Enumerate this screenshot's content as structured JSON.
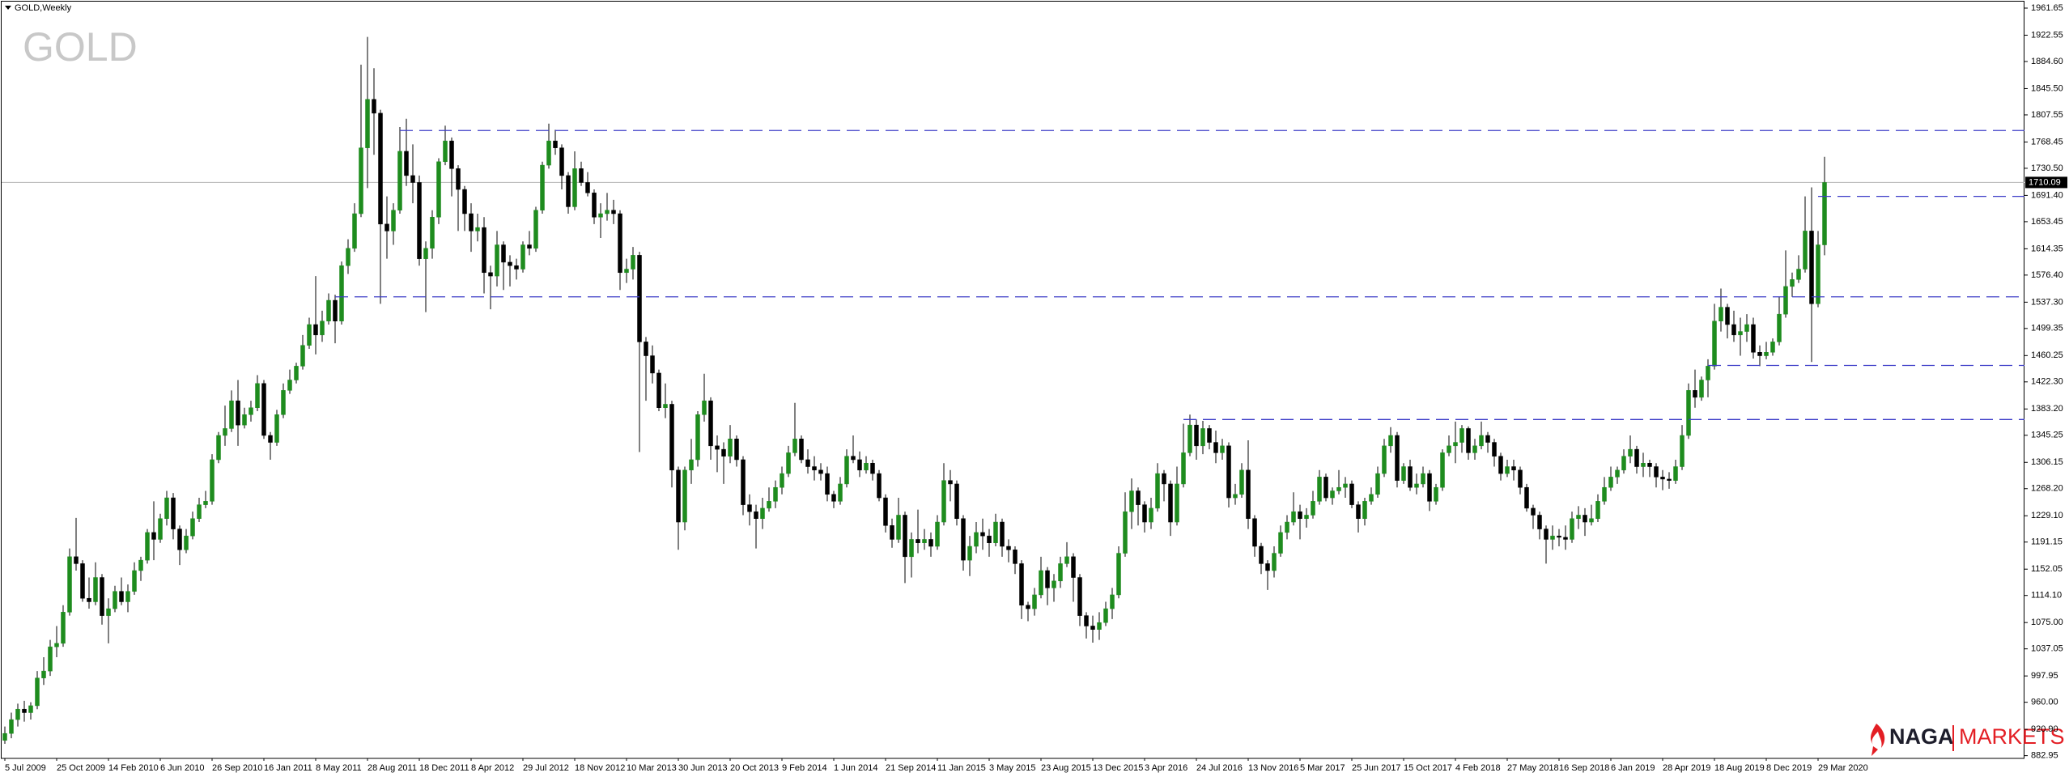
{
  "chart_data": {
    "type": "candlestick",
    "title": "GOLD,Weekly",
    "watermark": "GOLD",
    "up_color": "#1e8c1e",
    "down_color": "#000000",
    "wick_color": "#000000",
    "level_color": "#3c3cc8",
    "current_color": "#b4b4b4",
    "ylim": [
      879,
      1971
    ],
    "yticks": [
      1961.65,
      1922.55,
      {
        "value": 1884.6,
        "label": "1884.60"
      },
      {
        "value": 1845.5,
        "label": "1845.50"
      },
      1807.55,
      1768.45,
      {
        "value": 1730.5,
        "label": "1730.50"
      },
      {
        "value": 1691.4,
        "label": "1691.40"
      },
      1653.45,
      1614.35,
      {
        "value": 1576.4,
        "label": "1576.40"
      },
      {
        "value": 1537.3,
        "label": "1537.30"
      },
      1499.35,
      1460.25,
      {
        "value": 1422.3,
        "label": "1422.30"
      },
      {
        "value": 1383.2,
        "label": "1383.20"
      },
      1345.25,
      1306.15,
      {
        "value": 1268.2,
        "label": "1268.20"
      },
      {
        "value": 1229.1,
        "label": "1229.10"
      },
      1191.15,
      1152.05,
      {
        "value": 1114.1,
        "label": "1114.10"
      },
      {
        "value": 1075,
        "label": "1075.00"
      },
      1037.05,
      997.95,
      {
        "value": 960,
        "label": "960.00"
      },
      {
        "value": 920.9,
        "label": "920.90"
      },
      882.95
    ],
    "current_price": 1710.09,
    "levels": [
      {
        "price": 1785,
        "start": 61
      },
      {
        "price": 1690,
        "start": 280
      },
      {
        "price": 1545,
        "start": 51
      },
      {
        "price": 1446,
        "start": 263
      },
      {
        "price": 1368,
        "start": 182
      }
    ],
    "categories": [
      "5 Jul 2009",
      null,
      null,
      null,
      null,
      null,
      null,
      null,
      "25 Oct 2009",
      null,
      null,
      null,
      null,
      null,
      null,
      null,
      "14 Feb 2010",
      null,
      null,
      null,
      null,
      null,
      null,
      null,
      "6 Jun 2010",
      null,
      null,
      null,
      null,
      null,
      null,
      null,
      "26 Sep 2010",
      null,
      null,
      null,
      null,
      null,
      null,
      null,
      "16 Jan 2011",
      null,
      null,
      null,
      null,
      null,
      null,
      null,
      "8 May 2011",
      null,
      null,
      null,
      null,
      null,
      null,
      null,
      "28 Aug 2011",
      null,
      null,
      null,
      null,
      null,
      null,
      null,
      "18 Dec 2011",
      null,
      null,
      null,
      null,
      null,
      null,
      null,
      "8 Apr 2012",
      null,
      null,
      null,
      null,
      null,
      null,
      null,
      "29 Jul 2012",
      null,
      null,
      null,
      null,
      null,
      null,
      null,
      "18 Nov 2012",
      null,
      null,
      null,
      null,
      null,
      null,
      null,
      "10 Mar 2013",
      null,
      null,
      null,
      null,
      null,
      null,
      null,
      "30 Jun 2013",
      null,
      null,
      null,
      null,
      null,
      null,
      null,
      "20 Oct 2013",
      null,
      null,
      null,
      null,
      null,
      null,
      null,
      "9 Feb 2014",
      null,
      null,
      null,
      null,
      null,
      null,
      null,
      "1 Jun 2014",
      null,
      null,
      null,
      null,
      null,
      null,
      null,
      "21 Sep 2014",
      null,
      null,
      null,
      null,
      null,
      null,
      null,
      "11 Jan 2015",
      null,
      null,
      null,
      null,
      null,
      null,
      null,
      "3 May 2015",
      null,
      null,
      null,
      null,
      null,
      null,
      null,
      "23 Aug 2015",
      null,
      null,
      null,
      null,
      null,
      null,
      null,
      "13 Dec 2015",
      null,
      null,
      null,
      null,
      null,
      null,
      null,
      "3 Apr 2016",
      null,
      null,
      null,
      null,
      null,
      null,
      null,
      "24 Jul 2016",
      null,
      null,
      null,
      null,
      null,
      null,
      null,
      "13 Nov 2016",
      null,
      null,
      null,
      null,
      null,
      null,
      null,
      "5 Mar 2017",
      null,
      null,
      null,
      null,
      null,
      null,
      null,
      "25 Jun 2017",
      null,
      null,
      null,
      null,
      null,
      null,
      null,
      "15 Oct 2017",
      null,
      null,
      null,
      null,
      null,
      null,
      null,
      "4 Feb 2018",
      null,
      null,
      null,
      null,
      null,
      null,
      null,
      "27 May 2018",
      null,
      null,
      null,
      null,
      null,
      null,
      null,
      "16 Sep 2018",
      null,
      null,
      null,
      null,
      null,
      null,
      null,
      "6 Jan 2019",
      null,
      null,
      null,
      null,
      null,
      null,
      null,
      "28 Apr 2019",
      null,
      null,
      null,
      null,
      null,
      null,
      null,
      "18 Aug 2019",
      null,
      null,
      null,
      null,
      null,
      null,
      null,
      "8 Dec 2019",
      null,
      null,
      null,
      null,
      null,
      null,
      null,
      "29 Mar 2020",
      null
    ],
    "open": [
      905,
      915,
      935,
      950,
      945,
      955,
      995,
      1005,
      1040,
      1045,
      1090,
      1170,
      1160,
      1110,
      1105,
      1140,
      1085,
      1095,
      1120,
      1105,
      1120,
      1150,
      1165,
      1205,
      1195,
      1225,
      1255,
      1210,
      1180,
      1200,
      1225,
      1245,
      1250,
      1310,
      1345,
      1355,
      1395,
      1360,
      1375,
      1385,
      1420,
      1345,
      1335,
      1375,
      1410,
      1425,
      1445,
      1475,
      1505,
      1490,
      1510,
      1540,
      1510,
      1590,
      1615,
      1665,
      1760,
      1830,
      1810,
      1650,
      1640,
      1670,
      1755,
      1720,
      1710,
      1600,
      1615,
      1660,
      1740,
      1770,
      1730,
      1700,
      1665,
      1640,
      1645,
      1580,
      1575,
      1620,
      1595,
      1590,
      1585,
      1620,
      1615,
      1670,
      1735,
      1770,
      1760,
      1720,
      1675,
      1730,
      1710,
      1695,
      1660,
      1665,
      1670,
      1665,
      1580,
      1585,
      1605,
      1480,
      1460,
      1435,
      1385,
      1390,
      1295,
      1220,
      1295,
      1310,
      1375,
      1395,
      1330,
      1325,
      1315,
      1340,
      1310,
      1245,
      1235,
      1225,
      1240,
      1250,
      1270,
      1290,
      1320,
      1340,
      1310,
      1300,
      1295,
      1290,
      1260,
      1250,
      1275,
      1315,
      1310,
      1295,
      1305,
      1290,
      1255,
      1215,
      1195,
      1230,
      1170,
      1195,
      1190,
      1195,
      1185,
      1220,
      1280,
      1275,
      1225,
      1165,
      1185,
      1205,
      1200,
      1190,
      1220,
      1185,
      1180,
      1160,
      1100,
      1095,
      1115,
      1150,
      1125,
      1135,
      1160,
      1170,
      1140,
      1085,
      1070,
      1065,
      1075,
      1095,
      1115,
      1175,
      1235,
      1265,
      1245,
      1220,
      1240,
      1290,
      1275,
      1220,
      1275,
      1320,
      1360,
      1330,
      1355,
      1335,
      1320,
      1330,
      1255,
      1260,
      1295,
      1225,
      1185,
      1160,
      1150,
      1175,
      1205,
      1220,
      1235,
      1225,
      1230,
      1250,
      1285,
      1255,
      1265,
      1270,
      1275,
      1245,
      1225,
      1250,
      1260,
      1290,
      1330,
      1345,
      1280,
      1300,
      1270,
      1275,
      1290,
      1250,
      1270,
      1320,
      1330,
      1335,
      1355,
      1320,
      1330,
      1345,
      1335,
      1315,
      1290,
      1300,
      1295,
      1270,
      1240,
      1230,
      1210,
      1195,
      1200,
      1198,
      1195,
      1225,
      1230,
      1220,
      1225,
      1250,
      1270,
      1285,
      1295,
      1315,
      1325,
      1300,
      1305,
      1300,
      1285,
      1282,
      1280,
      1300,
      1345,
      1410,
      1400,
      1425,
      1445,
      1510,
      1530,
      1505,
      1490,
      1495,
      1505,
      1465,
      1460,
      1465,
      1480,
      1520,
      1560,
      1570,
      1585,
      1640,
      1535,
      1620
    ],
    "high": [
      925,
      945,
      958,
      962,
      960,
      1005,
      1025,
      1050,
      1070,
      1100,
      1182,
      1226,
      1165,
      1140,
      1162,
      1145,
      1110,
      1128,
      1140,
      1130,
      1162,
      1170,
      1210,
      1250,
      1232,
      1265,
      1262,
      1215,
      1210,
      1235,
      1255,
      1265,
      1318,
      1350,
      1388,
      1410,
      1425,
      1385,
      1395,
      1432,
      1425,
      1350,
      1382,
      1420,
      1440,
      1450,
      1490,
      1515,
      1575,
      1525,
      1550,
      1548,
      1596,
      1628,
      1680,
      1880,
      1920,
      1875,
      1815,
      1690,
      1680,
      1790,
      1802,
      1765,
      1720,
      1625,
      1670,
      1745,
      1792,
      1775,
      1735,
      1705,
      1680,
      1665,
      1660,
      1590,
      1640,
      1625,
      1605,
      1600,
      1625,
      1640,
      1675,
      1740,
      1795,
      1786,
      1765,
      1725,
      1755,
      1740,
      1725,
      1700,
      1680,
      1695,
      1685,
      1670,
      1600,
      1617,
      1610,
      1487,
      1475,
      1440,
      1420,
      1395,
      1300,
      1300,
      1340,
      1380,
      1434,
      1400,
      1345,
      1335,
      1360,
      1345,
      1315,
      1260,
      1245,
      1255,
      1270,
      1280,
      1300,
      1330,
      1392,
      1345,
      1325,
      1315,
      1305,
      1300,
      1265,
      1285,
      1325,
      1345,
      1322,
      1315,
      1310,
      1295,
      1260,
      1225,
      1255,
      1235,
      1205,
      1238,
      1210,
      1205,
      1230,
      1305,
      1295,
      1280,
      1230,
      1200,
      1220,
      1225,
      1210,
      1232,
      1225,
      1195,
      1185,
      1165,
      1105,
      1125,
      1170,
      1155,
      1145,
      1170,
      1191,
      1175,
      1145,
      1090,
      1085,
      1090,
      1105,
      1125,
      1185,
      1263,
      1283,
      1270,
      1250,
      1255,
      1305,
      1295,
      1280,
      1300,
      1362,
      1375,
      1368,
      1366,
      1360,
      1352,
      1340,
      1335,
      1275,
      1305,
      1338,
      1230,
      1190,
      1165,
      1185,
      1215,
      1230,
      1263,
      1245,
      1240,
      1265,
      1295,
      1290,
      1270,
      1295,
      1285,
      1280,
      1250,
      1255,
      1270,
      1300,
      1340,
      1357,
      1350,
      1305,
      1310,
      1290,
      1300,
      1295,
      1275,
      1325,
      1345,
      1365,
      1360,
      1358,
      1340,
      1365,
      1350,
      1340,
      1320,
      1310,
      1310,
      1300,
      1275,
      1245,
      1235,
      1215,
      1215,
      1210,
      1215,
      1235,
      1243,
      1240,
      1245,
      1260,
      1285,
      1300,
      1300,
      1325,
      1345,
      1330,
      1320,
      1310,
      1305,
      1295,
      1292,
      1310,
      1360,
      1420,
      1440,
      1430,
      1455,
      1535,
      1557,
      1535,
      1525,
      1515,
      1520,
      1515,
      1475,
      1480,
      1485,
      1545,
      1612,
      1580,
      1605,
      1690,
      1703,
      1640,
      1747
    ],
    "low": [
      900,
      908,
      925,
      932,
      935,
      950,
      985,
      998,
      1025,
      1040,
      1085,
      1150,
      1105,
      1095,
      1100,
      1072,
      1045,
      1090,
      1100,
      1090,
      1115,
      1135,
      1160,
      1165,
      1190,
      1215,
      1195,
      1158,
      1175,
      1195,
      1220,
      1240,
      1245,
      1305,
      1330,
      1350,
      1330,
      1355,
      1365,
      1380,
      1340,
      1310,
      1330,
      1370,
      1405,
      1420,
      1440,
      1470,
      1462,
      1480,
      1505,
      1478,
      1505,
      1578,
      1610,
      1660,
      1702,
      1750,
      1535,
      1600,
      1620,
      1665,
      1705,
      1680,
      1590,
      1523,
      1600,
      1650,
      1735,
      1690,
      1640,
      1640,
      1610,
      1625,
      1550,
      1527,
      1560,
      1555,
      1560,
      1570,
      1580,
      1605,
      1610,
      1665,
      1730,
      1750,
      1700,
      1665,
      1670,
      1705,
      1690,
      1650,
      1630,
      1655,
      1650,
      1555,
      1565,
      1570,
      1321,
      1395,
      1420,
      1380,
      1370,
      1270,
      1180,
      1208,
      1275,
      1300,
      1365,
      1310,
      1292,
      1275,
      1305,
      1300,
      1230,
      1215,
      1182,
      1210,
      1235,
      1240,
      1260,
      1285,
      1315,
      1305,
      1290,
      1280,
      1280,
      1250,
      1240,
      1245,
      1270,
      1305,
      1285,
      1290,
      1280,
      1250,
      1205,
      1183,
      1190,
      1132,
      1140,
      1175,
      1180,
      1170,
      1180,
      1215,
      1250,
      1215,
      1150,
      1142,
      1175,
      1180,
      1170,
      1185,
      1170,
      1162,
      1145,
      1080,
      1077,
      1085,
      1110,
      1100,
      1105,
      1125,
      1155,
      1105,
      1070,
      1052,
      1046,
      1050,
      1070,
      1080,
      1110,
      1170,
      1210,
      1215,
      1205,
      1210,
      1235,
      1250,
      1200,
      1215,
      1270,
      1315,
      1310,
      1318,
      1325,
      1305,
      1310,
      1241,
      1245,
      1255,
      1210,
      1170,
      1145,
      1122,
      1140,
      1170,
      1195,
      1215,
      1195,
      1212,
      1225,
      1245,
      1250,
      1245,
      1260,
      1255,
      1240,
      1205,
      1215,
      1245,
      1255,
      1285,
      1320,
      1270,
      1275,
      1265,
      1260,
      1270,
      1236,
      1245,
      1265,
      1315,
      1305,
      1320,
      1310,
      1310,
      1325,
      1320,
      1300,
      1280,
      1285,
      1280,
      1260,
      1235,
      1210,
      1195,
      1160,
      1180,
      1185,
      1180,
      1190,
      1210,
      1200,
      1215,
      1220,
      1245,
      1265,
      1275,
      1290,
      1305,
      1290,
      1285,
      1285,
      1270,
      1266,
      1268,
      1275,
      1295,
      1340,
      1385,
      1395,
      1400,
      1440,
      1495,
      1485,
      1480,
      1460,
      1480,
      1456,
      1445,
      1455,
      1460,
      1475,
      1515,
      1545,
      1565,
      1580,
      1451,
      1530,
      1605
    ],
    "close": [
      915,
      935,
      950,
      945,
      955,
      995,
      1005,
      1040,
      1045,
      1090,
      1170,
      1160,
      1110,
      1105,
      1140,
      1085,
      1095,
      1120,
      1105,
      1120,
      1150,
      1165,
      1205,
      1195,
      1225,
      1255,
      1210,
      1180,
      1200,
      1225,
      1245,
      1250,
      1310,
      1345,
      1355,
      1395,
      1360,
      1375,
      1385,
      1420,
      1345,
      1335,
      1375,
      1410,
      1425,
      1445,
      1475,
      1505,
      1490,
      1510,
      1540,
      1510,
      1590,
      1615,
      1665,
      1760,
      1830,
      1810,
      1650,
      1640,
      1670,
      1755,
      1720,
      1710,
      1600,
      1615,
      1660,
      1740,
      1770,
      1730,
      1700,
      1665,
      1640,
      1645,
      1580,
      1575,
      1620,
      1595,
      1590,
      1585,
      1620,
      1615,
      1670,
      1735,
      1770,
      1760,
      1720,
      1675,
      1730,
      1710,
      1695,
      1660,
      1665,
      1670,
      1665,
      1580,
      1585,
      1605,
      1480,
      1460,
      1435,
      1385,
      1390,
      1295,
      1220,
      1295,
      1310,
      1375,
      1395,
      1330,
      1325,
      1315,
      1340,
      1310,
      1245,
      1235,
      1225,
      1240,
      1250,
      1270,
      1290,
      1320,
      1340,
      1310,
      1300,
      1295,
      1290,
      1260,
      1250,
      1275,
      1315,
      1310,
      1295,
      1305,
      1290,
      1255,
      1215,
      1195,
      1230,
      1170,
      1195,
      1190,
      1195,
      1185,
      1220,
      1280,
      1275,
      1225,
      1165,
      1185,
      1205,
      1200,
      1190,
      1220,
      1185,
      1180,
      1160,
      1100,
      1095,
      1115,
      1150,
      1125,
      1135,
      1160,
      1170,
      1140,
      1085,
      1070,
      1065,
      1075,
      1095,
      1115,
      1175,
      1235,
      1265,
      1245,
      1220,
      1240,
      1290,
      1275,
      1220,
      1275,
      1320,
      1360,
      1330,
      1355,
      1335,
      1320,
      1330,
      1255,
      1260,
      1295,
      1225,
      1185,
      1160,
      1150,
      1175,
      1205,
      1220,
      1235,
      1225,
      1230,
      1250,
      1285,
      1255,
      1265,
      1270,
      1275,
      1245,
      1225,
      1250,
      1260,
      1290,
      1330,
      1345,
      1280,
      1300,
      1270,
      1275,
      1290,
      1250,
      1270,
      1320,
      1330,
      1335,
      1355,
      1320,
      1330,
      1345,
      1335,
      1315,
      1290,
      1300,
      1295,
      1270,
      1240,
      1230,
      1210,
      1195,
      1200,
      1198,
      1195,
      1225,
      1230,
      1220,
      1225,
      1250,
      1270,
      1285,
      1295,
      1315,
      1325,
      1300,
      1305,
      1300,
      1285,
      1282,
      1280,
      1300,
      1345,
      1410,
      1400,
      1425,
      1445,
      1510,
      1530,
      1505,
      1490,
      1495,
      1505,
      1465,
      1460,
      1465,
      1480,
      1520,
      1560,
      1570,
      1585,
      1640,
      1535,
      1620,
      1710
    ]
  },
  "logo": {
    "left": "NAGA",
    "right": "MARKETS"
  }
}
